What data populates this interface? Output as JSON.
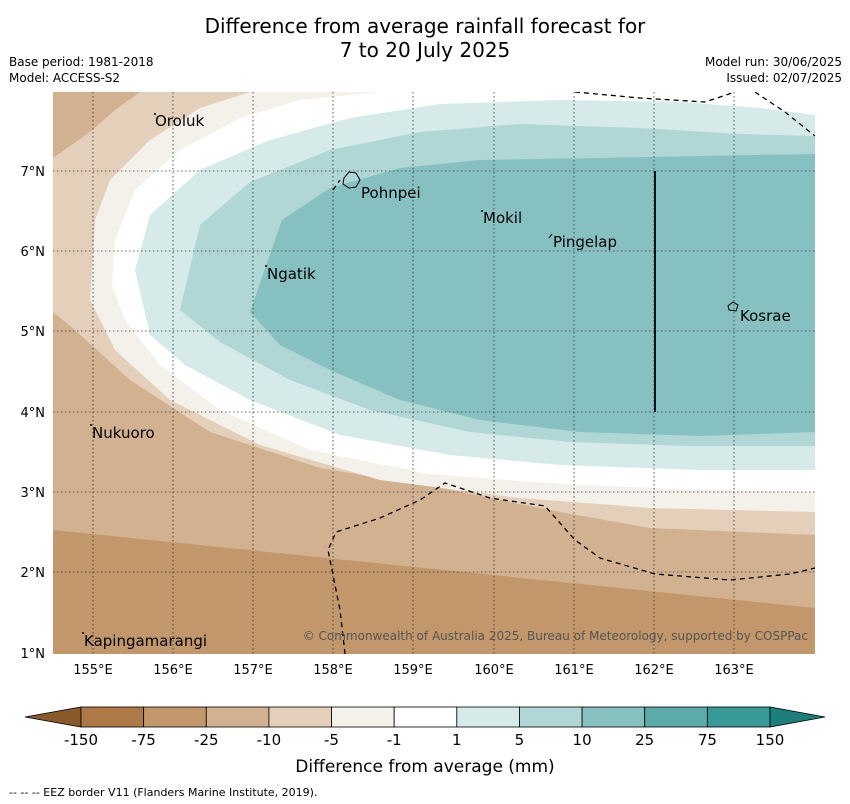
{
  "title_line1": "Difference from average rainfall forecast for",
  "title_line2": "7 to 20 July 2025",
  "meta_left": [
    "Base period: 1981-2018",
    "Model: ACCESS-S2"
  ],
  "meta_right": [
    "Model run: 30/06/2025",
    "Issued: 02/07/2025"
  ],
  "lon_labels": [
    "155°E",
    "156°E",
    "157°E",
    "158°E",
    "159°E",
    "160°E",
    "161°E",
    "162°E",
    "163°E"
  ],
  "lat_labels": [
    "7°N",
    "6°N",
    "5°N",
    "4°N",
    "3°N",
    "2°N",
    "1°N"
  ],
  "places": [
    {
      "name": "Oroluk",
      "lon": 155.75,
      "lat": 7.65
    },
    {
      "name": "Pohnpei",
      "lon": 158.35,
      "lat": 6.85
    },
    {
      "name": "Mokil",
      "lon": 159.85,
      "lat": 6.35
    },
    {
      "name": "Pingelap",
      "lon": 160.75,
      "lat": 6.15
    },
    {
      "name": "Ngatik",
      "lon": 157.15,
      "lat": 5.8
    },
    {
      "name": "Kosrae",
      "lon": 163.0,
      "lat": 5.25
    },
    {
      "name": "Nukuoro",
      "lon": 154.95,
      "lat": 3.8
    },
    {
      "name": "Kapingamarangi",
      "lon": 154.85,
      "lat": 1.2
    }
  ],
  "copyright": "© Commonwealth of Australia 2025, Bureau of Meteorology, supported by COSPPac",
  "colorbar": {
    "ticks": [
      "-150",
      "-75",
      "-25",
      "-10",
      "-5",
      "-1",
      "1",
      "5",
      "10",
      "25",
      "75",
      "150"
    ],
    "colors": [
      "#ad7a47",
      "#c1976b",
      "#d2b190",
      "#e4cfba",
      "#f4f0ea",
      "#ffffff",
      "#d6eaea",
      "#b0d6d6",
      "#86c0c0",
      "#5aabaa",
      "#379a98"
    ],
    "extend_low": "#8a5a2b",
    "extend_high": "#1c7f7c",
    "label": "Difference from average (mm)"
  },
  "footer": "--  --  -- EEZ border V11 (Flanders Marine Institute, 2019)."
}
